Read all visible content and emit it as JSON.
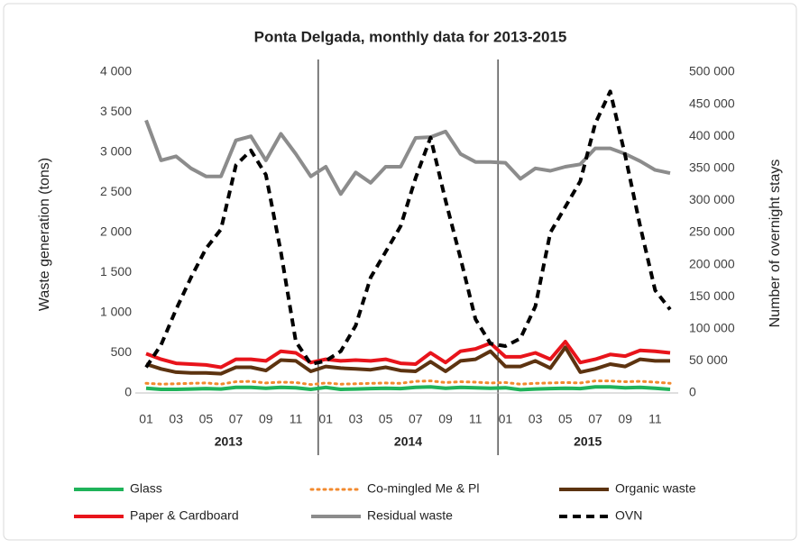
{
  "chart_data": {
    "type": "line",
    "title": "Ponta Delgada, monthly data for 2013-2015",
    "ylabel": "Waste generation (tons)",
    "y2label": "Number of overnight stays",
    "categories": [
      "01",
      null,
      "03",
      null,
      "05",
      null,
      "07",
      null,
      "09",
      null,
      "11",
      null,
      "01",
      null,
      "03",
      null,
      "05",
      null,
      "07",
      null,
      "09",
      null,
      "11",
      null,
      "01",
      null,
      "03",
      null,
      "05",
      null,
      "07",
      null,
      "09",
      null,
      "11",
      null
    ],
    "groups": [
      "2013",
      "2014",
      "2015"
    ],
    "ylim": [
      0,
      4000
    ],
    "yticks": [
      0,
      500,
      {
        "value": 1000,
        "label": "1 000"
      },
      {
        "value": 1500,
        "label": "1 500"
      },
      {
        "value": 2000,
        "label": "2 000"
      },
      {
        "value": 2500,
        "label": "2 500"
      },
      {
        "value": 3000,
        "label": "3 000"
      },
      {
        "value": 3500,
        "label": "3 500"
      },
      {
        "value": 4000,
        "label": "4 000"
      }
    ],
    "y2lim": [
      0,
      500000
    ],
    "y2ticks": [
      0,
      {
        "value": 50000,
        "label": "50 000"
      },
      {
        "value": 100000,
        "label": "100 000"
      },
      {
        "value": 150000,
        "label": "150 000"
      },
      {
        "value": 200000,
        "label": "200 000"
      },
      {
        "value": 250000,
        "label": "250 000"
      },
      {
        "value": 300000,
        "label": "300 000"
      },
      {
        "value": 350000,
        "label": "350 000"
      },
      {
        "value": 400000,
        "label": "400 000"
      },
      {
        "value": 450000,
        "label": "450 000"
      },
      {
        "value": 500000,
        "label": "500 000"
      }
    ],
    "grid": false,
    "series": [
      {
        "name": "Glass",
        "color": "#1fb35a",
        "dash": "solid",
        "values": [
          60,
          45,
          45,
          50,
          55,
          50,
          70,
          70,
          60,
          70,
          65,
          45,
          70,
          45,
          50,
          55,
          60,
          55,
          70,
          75,
          60,
          70,
          65,
          60,
          65,
          40,
          50,
          55,
          60,
          55,
          75,
          75,
          65,
          70,
          60,
          45
        ]
      },
      {
        "name": "Co-mingled Me & Pl",
        "color": "#f28a2e",
        "dash": "dotted",
        "values": [
          120,
          110,
          115,
          120,
          125,
          110,
          140,
          145,
          125,
          135,
          130,
          105,
          125,
          110,
          115,
          120,
          125,
          120,
          145,
          150,
          130,
          140,
          135,
          125,
          130,
          110,
          120,
          125,
          130,
          125,
          150,
          150,
          140,
          145,
          135,
          120
        ]
      },
      {
        "name": "Organic waste",
        "color": "#5c3310",
        "dash": "solid",
        "values": [
          360,
          300,
          260,
          250,
          250,
          240,
          320,
          320,
          280,
          410,
          400,
          270,
          330,
          310,
          300,
          290,
          320,
          280,
          270,
          390,
          270,
          400,
          420,
          520,
          330,
          330,
          400,
          310,
          570,
          260,
          300,
          360,
          330,
          420,
          400,
          400
        ]
      },
      {
        "name": "Paper & Cardboard",
        "color": "#e8141b",
        "dash": "solid",
        "values": [
          490,
          420,
          370,
          360,
          350,
          320,
          420,
          420,
          400,
          520,
          500,
          380,
          420,
          400,
          410,
          400,
          420,
          370,
          360,
          500,
          380,
          520,
          550,
          620,
          450,
          450,
          500,
          420,
          640,
          380,
          420,
          480,
          460,
          530,
          520,
          500
        ]
      },
      {
        "name": "Residual waste",
        "color": "#8c8c8c",
        "dash": "solid",
        "values": [
          3400,
          2900,
          2950,
          2800,
          2700,
          2700,
          3150,
          3200,
          2900,
          3230,
          2980,
          2700,
          2820,
          2480,
          2750,
          2620,
          2820,
          2820,
          3180,
          3190,
          3260,
          2980,
          2880,
          2880,
          2870,
          2670,
          2800,
          2770,
          2820,
          2850,
          3050,
          3050,
          2980,
          2890,
          2780,
          2740
        ]
      },
      {
        "name": "OVN",
        "color": "#000000",
        "dash": "dashed",
        "axis": "y2",
        "values": [
          40000,
          75000,
          130000,
          180000,
          225000,
          255000,
          355000,
          378000,
          340000,
          220000,
          80000,
          45000,
          50000,
          65000,
          105000,
          180000,
          220000,
          260000,
          335000,
          398000,
          300000,
          210000,
          115000,
          77000,
          73000,
          85000,
          135000,
          250000,
          290000,
          330000,
          420000,
          470000,
          370000,
          260000,
          160000,
          130000
        ]
      }
    ]
  }
}
